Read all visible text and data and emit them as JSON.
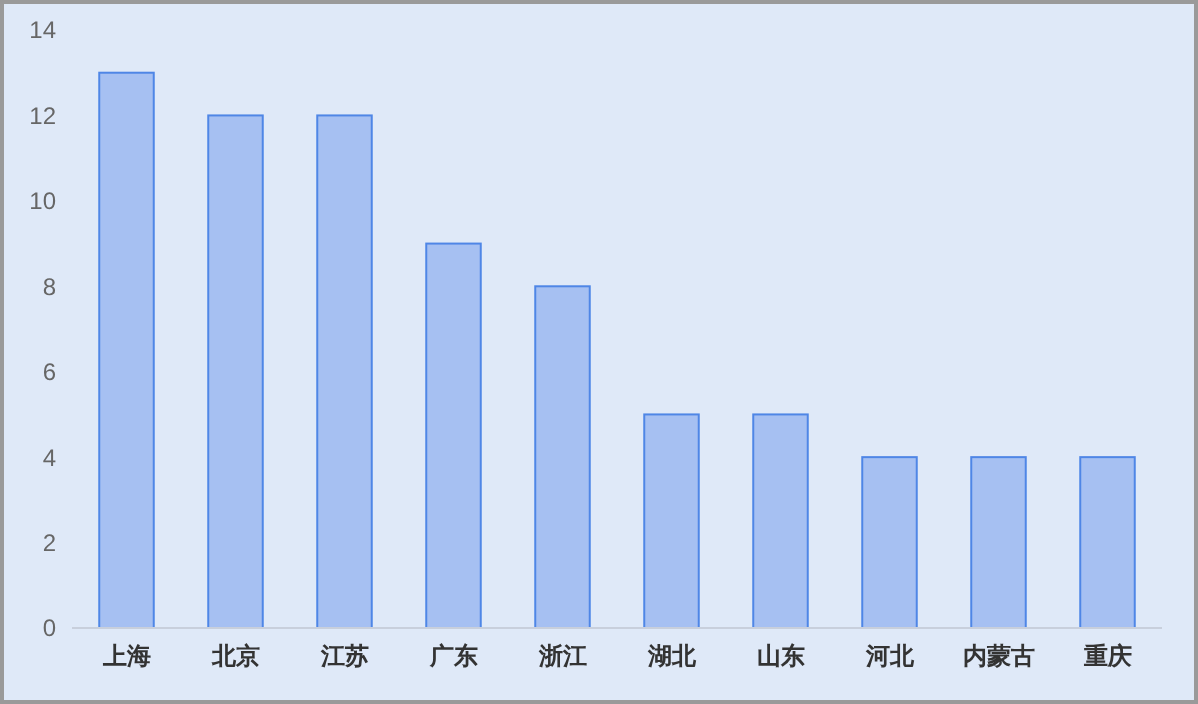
{
  "chart_data": {
    "type": "bar",
    "categories": [
      "上海",
      "北京",
      "江苏",
      "广东",
      "浙江",
      "湖北",
      "山东",
      "河北",
      "内蒙古",
      "重庆"
    ],
    "values": [
      13,
      12,
      12,
      9,
      8,
      5,
      5,
      4,
      4,
      4
    ],
    "color": "#a6c0f2",
    "ylim": [
      0,
      14
    ],
    "yticks": [
      0,
      2,
      4,
      6,
      8,
      10,
      12,
      14
    ],
    "grid": false
  }
}
